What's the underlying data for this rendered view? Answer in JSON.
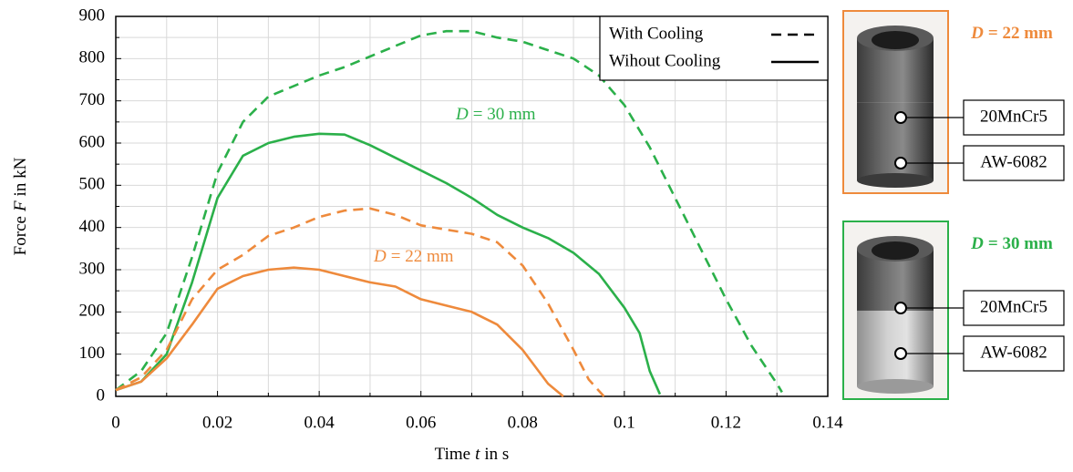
{
  "chart_data": {
    "type": "line",
    "xlabel": {
      "pre": "Time",
      "var": "t",
      "post": "in s"
    },
    "ylabel": {
      "pre": "Force",
      "var": "F",
      "post": "in kN"
    },
    "xlim": [
      0,
      0.14
    ],
    "xticks": [
      0,
      0.02,
      0.04,
      0.06,
      0.08,
      0.1,
      0.12,
      0.14
    ],
    "ylim": [
      0,
      900
    ],
    "yticks": [
      0,
      100,
      200,
      300,
      400,
      500,
      600,
      700,
      800,
      900
    ],
    "minor_xticks": [
      0.01,
      0.03,
      0.05,
      0.07,
      0.09,
      0.11,
      0.13
    ],
    "minor_yticks": [
      50,
      150,
      250,
      350,
      450,
      550,
      650,
      750,
      850
    ],
    "grid": true,
    "legend_position": "upper right",
    "legend": [
      {
        "name": "With Cooling",
        "style": "dashed"
      },
      {
        "name": "Wihout Cooling",
        "style": "solid"
      }
    ],
    "series": [
      {
        "color": "#2bb04a",
        "style": "dashed",
        "x": [
          0,
          0.005,
          0.01,
          0.015,
          0.02,
          0.025,
          0.03,
          0.035,
          0.04,
          0.045,
          0.05,
          0.055,
          0.06,
          0.065,
          0.07,
          0.075,
          0.08,
          0.085,
          0.09,
          0.095,
          0.1,
          0.105,
          0.11,
          0.115,
          0.12,
          0.125,
          0.13,
          0.131
        ],
        "values": [
          15,
          60,
          150,
          330,
          530,
          650,
          710,
          735,
          760,
          780,
          805,
          830,
          855,
          865,
          865,
          850,
          840,
          820,
          800,
          760,
          690,
          590,
          470,
          350,
          230,
          120,
          30,
          10
        ]
      },
      {
        "color": "#2bb04a",
        "style": "solid",
        "x": [
          0,
          0.005,
          0.01,
          0.015,
          0.02,
          0.025,
          0.03,
          0.035,
          0.04,
          0.045,
          0.05,
          0.055,
          0.06,
          0.065,
          0.07,
          0.075,
          0.08,
          0.085,
          0.09,
          0.095,
          0.1,
          0.103,
          0.105,
          0.107
        ],
        "values": [
          15,
          35,
          100,
          270,
          470,
          570,
          600,
          615,
          622,
          620,
          595,
          565,
          535,
          505,
          470,
          430,
          400,
          375,
          340,
          290,
          210,
          150,
          60,
          5
        ]
      },
      {
        "color": "#ee8a3c",
        "style": "dashed",
        "x": [
          0,
          0.005,
          0.01,
          0.015,
          0.02,
          0.025,
          0.03,
          0.035,
          0.04,
          0.045,
          0.05,
          0.055,
          0.06,
          0.065,
          0.07,
          0.075,
          0.08,
          0.085,
          0.09,
          0.093,
          0.096
        ],
        "values": [
          15,
          45,
          110,
          230,
          300,
          335,
          380,
          400,
          425,
          440,
          445,
          430,
          405,
          395,
          385,
          365,
          310,
          220,
          110,
          40,
          0
        ]
      },
      {
        "color": "#ee8a3c",
        "style": "solid",
        "x": [
          0,
          0.005,
          0.01,
          0.015,
          0.02,
          0.025,
          0.03,
          0.035,
          0.04,
          0.045,
          0.05,
          0.055,
          0.06,
          0.065,
          0.07,
          0.075,
          0.08,
          0.085,
          0.088
        ],
        "values": [
          15,
          35,
          90,
          170,
          255,
          285,
          300,
          305,
          300,
          285,
          270,
          260,
          230,
          215,
          200,
          170,
          110,
          30,
          0
        ]
      }
    ],
    "annotations": [
      {
        "var": "D",
        "text": "= 30 mm",
        "color": "#2bb04a"
      },
      {
        "var": "D",
        "text": "= 22 mm",
        "color": "#ee8a3c"
      }
    ]
  },
  "specimens": [
    {
      "var": "D",
      "text": "= 22 mm",
      "color": "#ee8a3c",
      "labels": [
        "20MnCr5",
        "AW-6082"
      ]
    },
    {
      "var": "D",
      "text": "= 30 mm",
      "color": "#2bb04a",
      "labels": [
        "20MnCr5",
        "AW-6082"
      ]
    }
  ]
}
